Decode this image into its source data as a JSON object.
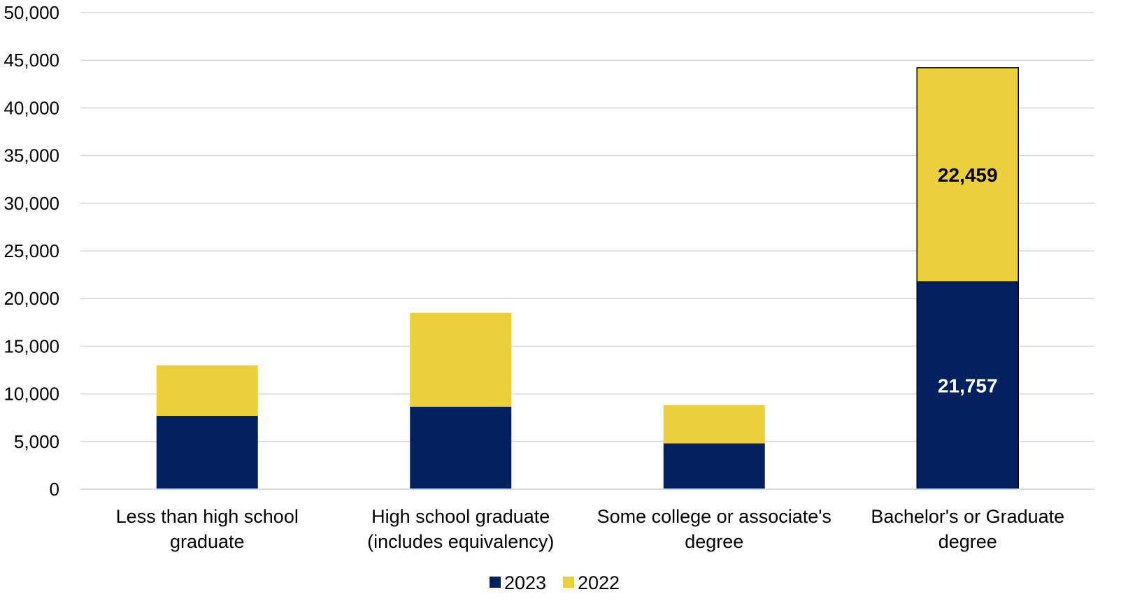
{
  "chart_data": {
    "type": "bar",
    "stacked": true,
    "title": "",
    "xlabel": "",
    "ylabel": "",
    "ylim": [
      0,
      50000
    ],
    "yticks": [
      0,
      5000,
      10000,
      15000,
      20000,
      25000,
      30000,
      35000,
      40000,
      45000,
      50000
    ],
    "ytick_labels": [
      "0",
      "5,000",
      "10,000",
      "15,000",
      "20,000",
      "25,000",
      "30,000",
      "35,000",
      "40,000",
      "45,000",
      "50,000"
    ],
    "grid": true,
    "legend_position": "bottom",
    "categories": [
      [
        "Less than high school",
        "graduate"
      ],
      [
        "High school graduate",
        "(includes equivalency)"
      ],
      [
        "Some college or associate's",
        "degree"
      ],
      [
        "Bachelor's or Graduate",
        "degree"
      ]
    ],
    "series": [
      {
        "name": "2023",
        "color": "#03215F",
        "values": [
          7700,
          8650,
          4800,
          21757
        ],
        "data_labels": [
          "",
          "",
          "",
          "21,757"
        ],
        "label_color": "#ffffff"
      },
      {
        "name": "2022",
        "color": "#EBCF3C",
        "values": [
          5300,
          9850,
          4000,
          22459
        ],
        "data_labels": [
          "",
          "",
          "",
          "22,459"
        ],
        "label_color": "#000000"
      }
    ],
    "outlined_category": 3
  }
}
